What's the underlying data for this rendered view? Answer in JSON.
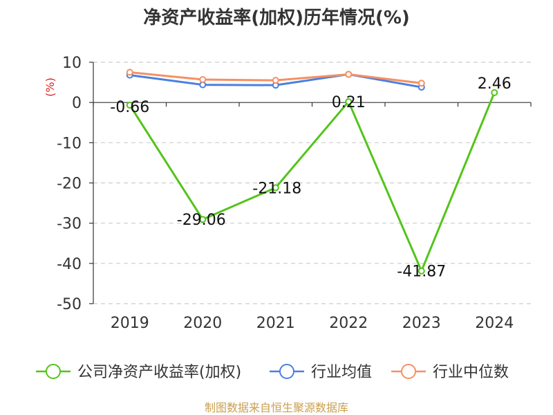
{
  "title": "净资产收益率(加权)历年情况(%)",
  "source": "制图数据来自恒生聚源数据库",
  "colors": {
    "primary": "#52c41a",
    "industry_avg": "#4a7fe0",
    "industry_median": "#f59062",
    "grid": "#cccccc",
    "axis": "#333333",
    "unit": "#e02020",
    "source": "#c8a050"
  },
  "chart_data": {
    "type": "line",
    "title": "净资产收益率(加权)历年情况(%)",
    "ylabel": "(%)",
    "xlabel": "",
    "categories": [
      "2019",
      "2020",
      "2021",
      "2022",
      "2023",
      "2024"
    ],
    "yticks": [
      "10",
      "0",
      "-10",
      "-20",
      "-30",
      "-40",
      "-50"
    ],
    "ylim": [
      -50,
      10
    ],
    "grid": "horizontal dashed",
    "legend_position": "bottom",
    "series": [
      {
        "name": "公司净资产收益率(加权)",
        "values": [
          -0.66,
          -29.06,
          -21.18,
          0.21,
          -41.87,
          2.46
        ],
        "labels": [
          "-0.66",
          "-29.06",
          "-21.18",
          "0.21",
          "-41.87",
          "2.46"
        ],
        "color": "#52c41a"
      },
      {
        "name": "行业均值",
        "values": [
          6.8,
          4.4,
          4.3,
          7.0,
          3.8,
          null
        ],
        "color": "#4a7fe0"
      },
      {
        "name": "行业中位数",
        "values": [
          7.5,
          5.7,
          5.5,
          7.0,
          4.8,
          null
        ],
        "color": "#f59062"
      }
    ]
  }
}
